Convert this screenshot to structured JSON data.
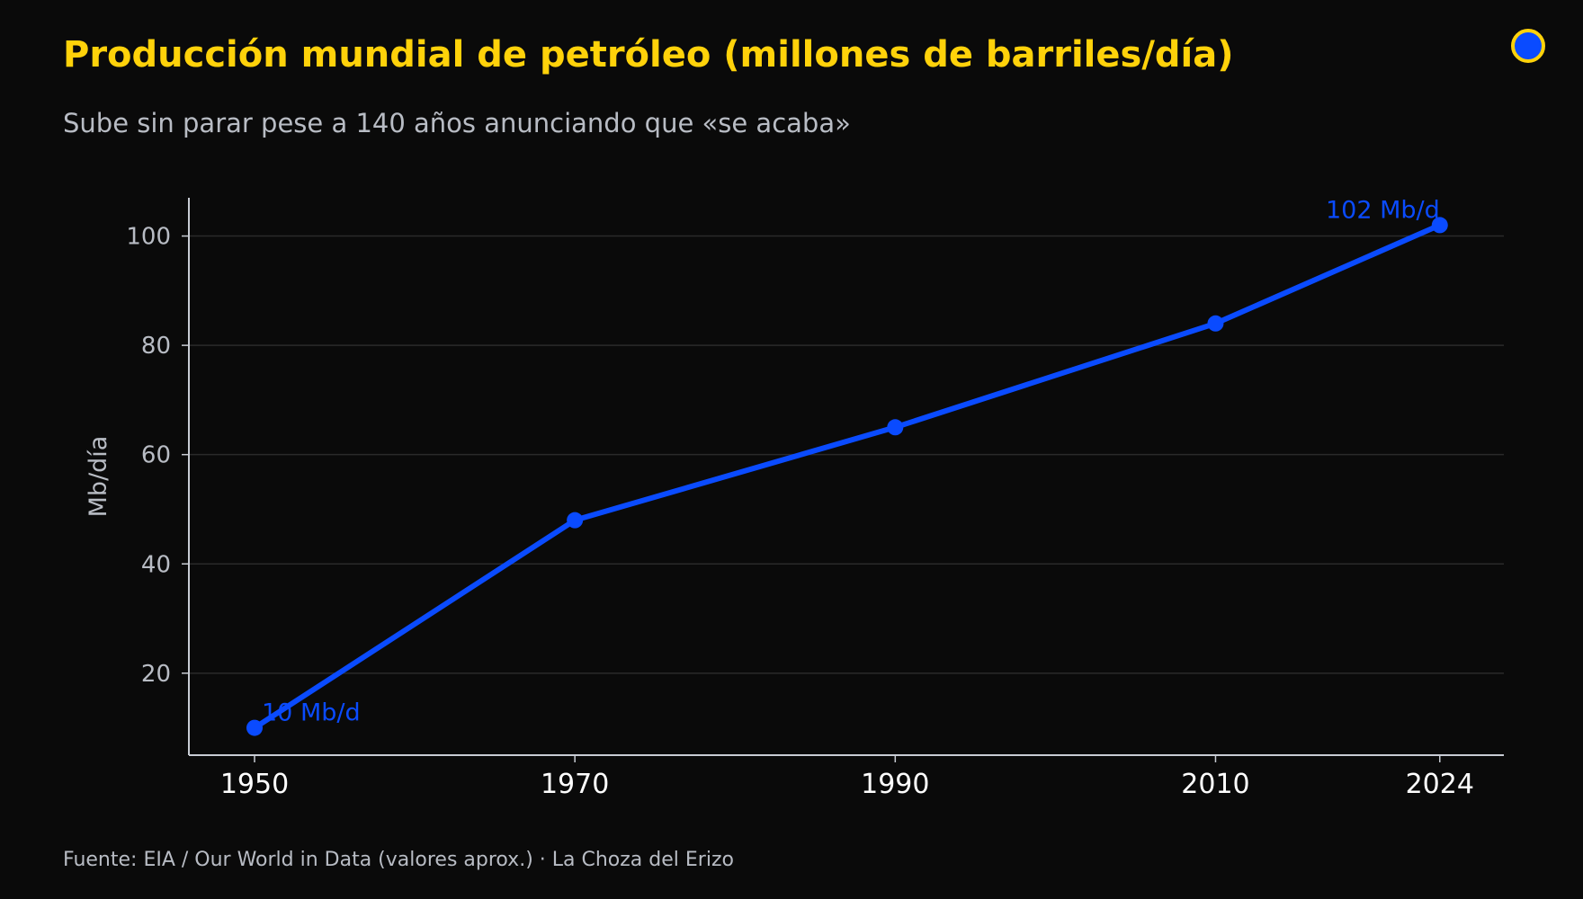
{
  "header": {
    "title": "Producción mundial de petróleo (millones de barriles/día)",
    "subtitle": "Sube sin parar pese a 140 años anunciando que «se acaba»"
  },
  "footer": {
    "source": "Fuente: EIA / Our World in Data (valores aprox.)  ·  La Choza del Erizo"
  },
  "logo": {
    "icon": "circle-logo-icon",
    "fill": "#0a4bff",
    "ring": "#ffd20a"
  },
  "colors": {
    "background": "#0a0a0a",
    "title": "#ffd20a",
    "series": "#0a4bff",
    "grid": "#2a2a2a",
    "axis": "#c8ccd4"
  },
  "chart_data": {
    "type": "line",
    "title": "Producción mundial de petróleo (millones de barriles/día)",
    "subtitle": "Sube sin parar pese a 140 años anunciando que «se acaba»",
    "xlabel": "",
    "ylabel": "Mb/día",
    "x": [
      1950,
      1970,
      1990,
      2010,
      2024
    ],
    "x_ticks": [
      "1950",
      "1970",
      "1990",
      "2010",
      "2024"
    ],
    "y_ticks": [
      20,
      40,
      60,
      80,
      100
    ],
    "ylim": [
      5,
      107
    ],
    "grid": "horizontal",
    "legend": "none",
    "series": [
      {
        "values": [
          10,
          48,
          65,
          84,
          102
        ]
      }
    ],
    "annotations": [
      {
        "x": 1950,
        "y": 10,
        "text": "10 Mb/d"
      },
      {
        "x": 2024,
        "y": 102,
        "text": "102 Mb/d"
      }
    ]
  }
}
